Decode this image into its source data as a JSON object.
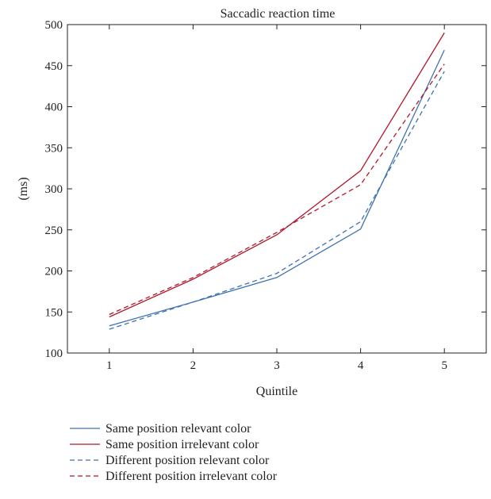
{
  "chart_data": {
    "type": "line",
    "title": "Saccadic reaction time",
    "xlabel": "Quintile",
    "ylabel": "(ms)",
    "x": [
      1,
      2,
      3,
      4,
      5
    ],
    "x_ticks": [
      "1",
      "2",
      "3",
      "4",
      "5"
    ],
    "xlim": [
      0.5,
      5.5
    ],
    "ylim": [
      100,
      500
    ],
    "y_ticks": [
      100,
      150,
      200,
      250,
      300,
      350,
      400,
      450,
      500
    ],
    "grid": false,
    "legend_position": "bottom-left, below plot",
    "series": [
      {
        "name": "Same position relevant color",
        "values": [
          133,
          162,
          192,
          251,
          469
        ],
        "color": "#3f72af",
        "dash": "solid"
      },
      {
        "name": "Same position irrelevant color",
        "values": [
          144,
          190,
          244,
          322,
          490
        ],
        "color": "#b2182b",
        "dash": "solid"
      },
      {
        "name": "Different position relevant color",
        "values": [
          129,
          162,
          197,
          260,
          443
        ],
        "color": "#3f72af",
        "dash": "dashed"
      },
      {
        "name": "Different position irrelevant color",
        "values": [
          147,
          192,
          247,
          305,
          452
        ],
        "color": "#b2182b",
        "dash": "dashed"
      }
    ]
  }
}
